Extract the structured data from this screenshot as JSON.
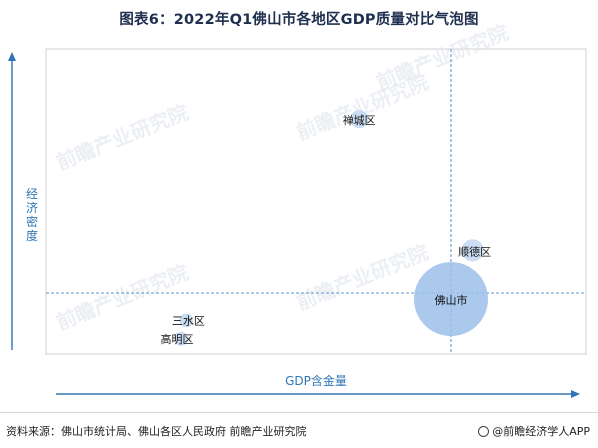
{
  "title": "图表6：2022年Q1佛山市各地区GDP质量对比气泡图",
  "footer": {
    "source": "资料来源：佛山市统计局、佛山各区人民政府 前瞻产业研究院",
    "brand": "@前瞻经济学人APP"
  },
  "watermark": "前瞻产业研究院",
  "colors": {
    "bubble_main": "#9bbfea",
    "bubble_light": "#c5d9f1",
    "axis": "#2e75b6",
    "title": "#1f2f4f"
  },
  "chart_data": {
    "type": "scatter",
    "title": "图表6：2022年Q1佛山市各地区GDP质量对比气泡图",
    "xlabel": "GDP含金量",
    "ylabel": "经济密度",
    "xlim": [
      0,
      100
    ],
    "ylim": [
      0,
      100
    ],
    "grid": false,
    "legend": "none",
    "reference_lines": {
      "x": 75,
      "y": 20
    },
    "series": [
      {
        "points": [
          {
            "label": "禅城区",
            "x": 58,
            "y": 77,
            "size": 6
          },
          {
            "label": "顺德区",
            "x": 79,
            "y": 34,
            "size": 9
          },
          {
            "label": "佛山市",
            "x": 75,
            "y": 18,
            "size": 100
          },
          {
            "label": "三水区",
            "x": 26,
            "y": 11,
            "size": 3
          },
          {
            "label": "高明区",
            "x": 25,
            "y": 5,
            "size": 2
          }
        ]
      }
    ]
  }
}
